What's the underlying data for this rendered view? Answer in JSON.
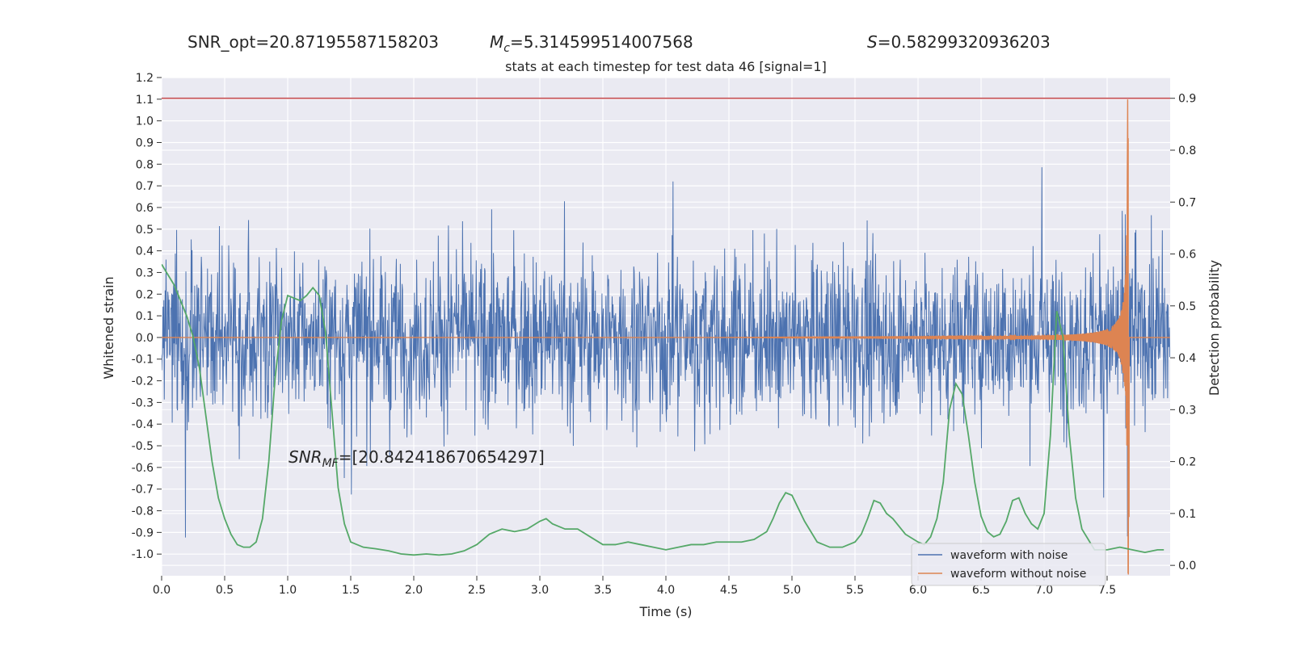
{
  "header": {
    "snr_opt": "SNR_opt=20.87195587158203",
    "mc_symbol": "M",
    "mc_sub": "c",
    "mc_value": "=5.314599514007568",
    "s_symbol": "S",
    "s_value": "=0.58299320936203",
    "snr_mf_symbol": "SNR",
    "snr_mf_sub": "MF",
    "snr_mf_value": "=[20.842418670654297]"
  },
  "chart_data": {
    "type": "line",
    "title": "stats at each timestep for test data 46 [signal=1]",
    "xlabel": "Time (s)",
    "ylabel": "Whitened strain",
    "y2label": "Detection probability",
    "xlim": [
      0,
      8
    ],
    "ylim": [
      -1.1,
      1.2
    ],
    "y2lim": [
      -0.02,
      0.94
    ],
    "xticks": [
      0.0,
      0.5,
      1.0,
      1.5,
      2.0,
      2.5,
      3.0,
      3.5,
      4.0,
      4.5,
      5.0,
      5.5,
      6.0,
      6.5,
      7.0,
      7.5
    ],
    "yticks": [
      -1.0,
      -0.9,
      -0.8,
      -0.7,
      -0.6,
      -0.5,
      -0.4,
      -0.3,
      -0.2,
      -0.1,
      0.0,
      0.1,
      0.2,
      0.3,
      0.4,
      0.5,
      0.6,
      0.7,
      0.8,
      0.9,
      1.0,
      1.1,
      1.2
    ],
    "y2ticks": [
      0.0,
      0.1,
      0.2,
      0.3,
      0.4,
      0.5,
      0.6,
      0.7,
      0.8,
      0.9
    ],
    "grid": true,
    "legend_position": "bottom-right",
    "colors": {
      "noise": "#4c72b0",
      "clean": "#dd8452",
      "prob": "#55a868",
      "threshold": "#c44e52",
      "axes_bg": "#eaeaf2",
      "grid": "#ffffff"
    },
    "series": [
      {
        "name": "waveform with noise",
        "kind": "noisy_strain",
        "typical_band": [
          -0.45,
          0.45
        ],
        "extremes": [
          -1.0,
          1.0
        ]
      },
      {
        "name": "waveform without noise",
        "kind": "chirp",
        "merger_time": 7.67,
        "peak_amplitude": 1.1
      }
    ],
    "probability": {
      "axis": "y2",
      "x": [
        0.0,
        0.05,
        0.1,
        0.15,
        0.2,
        0.25,
        0.3,
        0.35,
        0.4,
        0.45,
        0.5,
        0.55,
        0.6,
        0.65,
        0.7,
        0.75,
        0.8,
        0.85,
        0.9,
        0.95,
        1.0,
        1.05,
        1.1,
        1.15,
        1.2,
        1.25,
        1.3,
        1.35,
        1.4,
        1.45,
        1.5,
        1.6,
        1.7,
        1.8,
        1.9,
        2.0,
        2.1,
        2.2,
        2.3,
        2.4,
        2.5,
        2.6,
        2.7,
        2.8,
        2.9,
        3.0,
        3.05,
        3.1,
        3.2,
        3.3,
        3.4,
        3.5,
        3.6,
        3.7,
        3.8,
        3.9,
        4.0,
        4.1,
        4.2,
        4.3,
        4.4,
        4.5,
        4.6,
        4.7,
        4.8,
        4.85,
        4.9,
        4.95,
        5.0,
        5.05,
        5.1,
        5.15,
        5.2,
        5.3,
        5.4,
        5.5,
        5.55,
        5.6,
        5.65,
        5.7,
        5.75,
        5.8,
        5.9,
        6.0,
        6.05,
        6.1,
        6.15,
        6.2,
        6.25,
        6.3,
        6.35,
        6.4,
        6.45,
        6.5,
        6.55,
        6.6,
        6.65,
        6.7,
        6.75,
        6.8,
        6.85,
        6.9,
        6.95,
        7.0,
        7.05,
        7.1,
        7.15,
        7.2,
        7.25,
        7.3,
        7.35,
        7.4,
        7.5,
        7.6,
        7.7,
        7.8,
        7.9,
        7.95
      ],
      "y": [
        0.58,
        0.56,
        0.54,
        0.51,
        0.48,
        0.44,
        0.38,
        0.29,
        0.2,
        0.13,
        0.09,
        0.06,
        0.04,
        0.035,
        0.035,
        0.045,
        0.09,
        0.2,
        0.36,
        0.47,
        0.52,
        0.515,
        0.51,
        0.52,
        0.535,
        0.52,
        0.45,
        0.3,
        0.15,
        0.08,
        0.045,
        0.035,
        0.032,
        0.028,
        0.022,
        0.02,
        0.022,
        0.02,
        0.022,
        0.028,
        0.04,
        0.06,
        0.07,
        0.065,
        0.07,
        0.085,
        0.09,
        0.08,
        0.07,
        0.07,
        0.055,
        0.04,
        0.04,
        0.045,
        0.04,
        0.035,
        0.03,
        0.035,
        0.04,
        0.04,
        0.045,
        0.045,
        0.045,
        0.05,
        0.065,
        0.09,
        0.12,
        0.14,
        0.135,
        0.11,
        0.085,
        0.065,
        0.045,
        0.035,
        0.035,
        0.045,
        0.06,
        0.09,
        0.125,
        0.12,
        0.1,
        0.09,
        0.06,
        0.045,
        0.04,
        0.055,
        0.09,
        0.16,
        0.3,
        0.35,
        0.33,
        0.25,
        0.16,
        0.095,
        0.065,
        0.055,
        0.06,
        0.085,
        0.125,
        0.13,
        0.1,
        0.08,
        0.07,
        0.1,
        0.25,
        0.49,
        0.44,
        0.25,
        0.13,
        0.07,
        0.05,
        0.03,
        0.03,
        0.035,
        0.03,
        0.025,
        0.03,
        0.03
      ]
    },
    "threshold": {
      "axis": "y2",
      "value": 0.9
    }
  }
}
